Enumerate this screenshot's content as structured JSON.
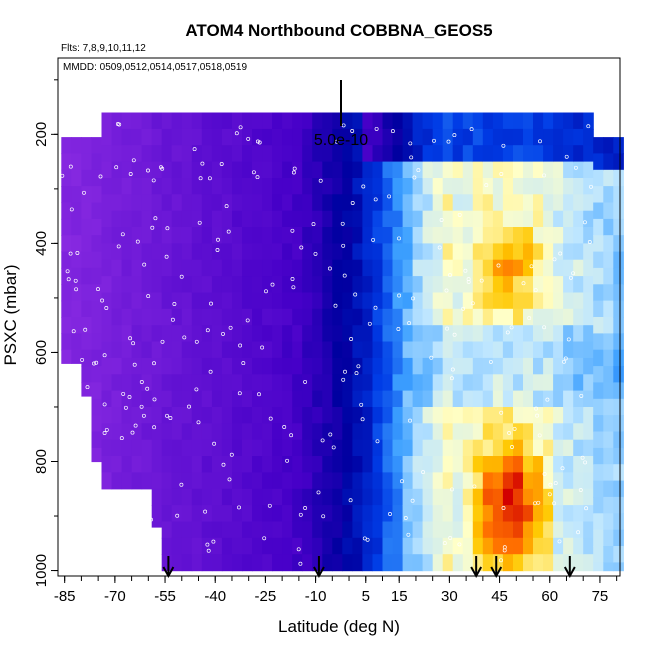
{
  "chart_data": {
    "type": "heatmap",
    "title": "ATOM4 Northbound COBBNA_GEOS5",
    "flights_label": "Flts: 7,8,9,10,11,12",
    "dates_label": "MMDD: 0509,0512,0514,0517,0518,0519",
    "xlabel": "Latitude (deg N)",
    "ylabel": "PSXC (mbar)",
    "xlim": [
      -87,
      81
    ],
    "ylim": [
      1010,
      60
    ],
    "x_ticks": [
      "-85",
      "-70",
      "-55",
      "-40",
      "-25",
      "-10",
      "5",
      "15",
      "30",
      "45",
      "60",
      "75"
    ],
    "x_tick_values": [
      -85,
      -70,
      -55,
      -40,
      -25,
      -10,
      5,
      15,
      30,
      45,
      60,
      75
    ],
    "y_ticks": [
      "200",
      "400",
      "600",
      "800",
      "1000"
    ],
    "y_tick_values": [
      200,
      400,
      600,
      800,
      1000
    ],
    "scale_bar_label": "5.0e-10",
    "flight_arrow_latitudes": [
      -54,
      -9,
      38,
      44,
      66
    ],
    "colors": {
      "low": "#8a2be2",
      "mid": "#0000cd",
      "light": "#e0f4ff",
      "high": "#ff6a00",
      "peak": "#d40000"
    }
  }
}
